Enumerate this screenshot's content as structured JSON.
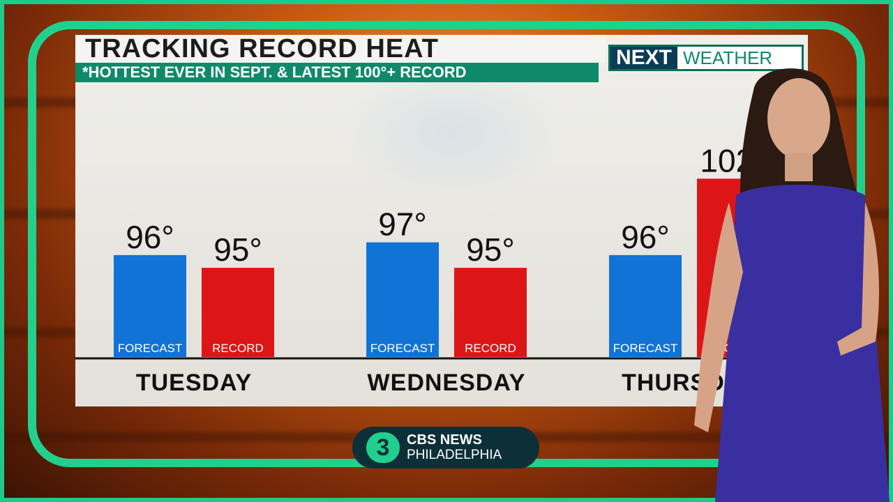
{
  "title": "TRACKING RECORD HEAT",
  "subtitle": "*HOTTEST EVER IN SEPT. & LATEST 100°+ RECORD",
  "logo": {
    "part1": "NEXT",
    "part2": "WEATHER"
  },
  "badge": {
    "number": "3",
    "line1": "CBS NEWS",
    "line2": "PHILADELPHIA"
  },
  "colors": {
    "forecast": "#1273d6",
    "record": "#dc1616",
    "accent": "#22d08e",
    "subtitle_bg": "#0e8a6a"
  },
  "chart_data": {
    "type": "bar",
    "categories": [
      "TUESDAY",
      "WEDNESDAY",
      "THURSDAY"
    ],
    "series": [
      {
        "name": "FORECAST",
        "values": [
          96,
          97,
          96
        ]
      },
      {
        "name": "RECORD",
        "values": [
          95,
          95,
          102
        ]
      }
    ],
    "value_labels": [
      [
        "96°",
        "97°",
        "96°"
      ],
      [
        "95°",
        "95°",
        "102°"
      ]
    ],
    "ylim": [
      88,
      103
    ],
    "title": "TRACKING RECORD HEAT"
  }
}
